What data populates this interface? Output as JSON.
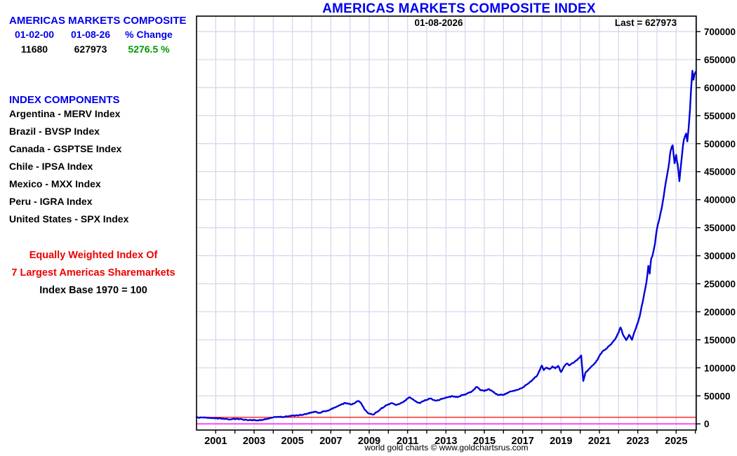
{
  "chart": {
    "title": "AMERICAS MARKETS COMPOSITE INDEX",
    "date_label": "01-08-2026",
    "last_label": "Last = 627973",
    "caption": "world gold charts © www.goldchartsrus.com"
  },
  "panel": {
    "title": "AMERICAS MARKETS COMPOSITE",
    "start_date": "01-02-00",
    "end_date": "01-08-26",
    "change_label": "% Change",
    "start_value": "11680",
    "end_value": "627973",
    "change_value": "5276.5 %",
    "components_heading": "INDEX COMPONENTS",
    "components": [
      "Argentina - MERV Index",
      "Brazil - BVSP Index",
      "Canada - GSPTSE Index",
      "Chile - IPSA Index",
      "Mexico - MXX Index",
      "Peru - IGRA Index",
      "United States - SPX Index"
    ],
    "note_line1": "Equally Weighted Index Of",
    "note_line2": "7 Largest Americas Sharemarkets",
    "note_line3": "Index Base 1970 = 100"
  },
  "chart_data": {
    "type": "line",
    "title": "AMERICAS MARKETS COMPOSITE INDEX",
    "xlabel": "",
    "ylabel": "",
    "xlim": [
      2000,
      2026.05
    ],
    "ylim": [
      -11000,
      727500
    ],
    "grid": true,
    "legend_position": "none",
    "y_ticks": [
      0,
      50000,
      100000,
      150000,
      200000,
      250000,
      300000,
      350000,
      400000,
      450000,
      500000,
      550000,
      600000,
      650000,
      700000
    ],
    "x_ticks": [
      2001,
      2002,
      2003,
      2004,
      2005,
      2006,
      2007,
      2008,
      2009,
      2010,
      2011,
      2012,
      2013,
      2014,
      2015,
      2016,
      2017,
      2018,
      2019,
      2020,
      2021,
      2022,
      2023,
      2024,
      2025,
      2026
    ],
    "x_labels": [
      2001,
      2003,
      2005,
      2007,
      2009,
      2011,
      2013,
      2015,
      2017,
      2019,
      2021,
      2023,
      2025
    ],
    "annotations": {
      "date_label": "01-08-2026",
      "last_label": "Last = 627973",
      "first_value": 11680,
      "last_value": 627973
    },
    "ref_lines": [
      {
        "name": "start-value-reference-line",
        "value": 11680,
        "color": "#ff0000"
      },
      {
        "name": "zero-reference-line",
        "value": 0,
        "color": "#ff00ff"
      }
    ],
    "colors": {
      "grid": "#d4d4ee",
      "axis": "#000000",
      "line": "#0000dd"
    },
    "series": [
      {
        "name": "Americas Markets Composite Index",
        "color": "#0000dd",
        "points": [
          [
            2000.0,
            11680
          ],
          [
            2000.25,
            11300
          ],
          [
            2000.5,
            11000
          ],
          [
            2000.75,
            10600
          ],
          [
            2001.0,
            10100
          ],
          [
            2001.3,
            9300
          ],
          [
            2001.55,
            8900
          ],
          [
            2001.72,
            7900
          ],
          [
            2001.9,
            8800
          ],
          [
            2002.1,
            8900
          ],
          [
            2002.35,
            8100
          ],
          [
            2002.6,
            7200
          ],
          [
            2002.8,
            6600
          ],
          [
            2003.0,
            6900
          ],
          [
            2003.25,
            6500
          ],
          [
            2003.5,
            7600
          ],
          [
            2003.75,
            9500
          ],
          [
            2004.0,
            11500
          ],
          [
            2004.25,
            12800
          ],
          [
            2004.5,
            12200
          ],
          [
            2004.75,
            13500
          ],
          [
            2005.0,
            14800
          ],
          [
            2005.25,
            15200
          ],
          [
            2005.5,
            16000
          ],
          [
            2005.75,
            18000
          ],
          [
            2006.0,
            20500
          ],
          [
            2006.2,
            21500
          ],
          [
            2006.4,
            19800
          ],
          [
            2006.6,
            21800
          ],
          [
            2006.8,
            23500
          ],
          [
            2007.0,
            26000
          ],
          [
            2007.25,
            29500
          ],
          [
            2007.5,
            33500
          ],
          [
            2007.75,
            37500
          ],
          [
            2007.9,
            36000
          ],
          [
            2008.1,
            34500
          ],
          [
            2008.3,
            38500
          ],
          [
            2008.45,
            41000
          ],
          [
            2008.6,
            35500
          ],
          [
            2008.75,
            26000
          ],
          [
            2008.9,
            20500
          ],
          [
            2009.05,
            17800
          ],
          [
            2009.2,
            16500
          ],
          [
            2009.4,
            21000
          ],
          [
            2009.6,
            26500
          ],
          [
            2009.8,
            31000
          ],
          [
            2010.0,
            35000
          ],
          [
            2010.2,
            37000
          ],
          [
            2010.4,
            33500
          ],
          [
            2010.6,
            36000
          ],
          [
            2010.8,
            39500
          ],
          [
            2011.0,
            45000
          ],
          [
            2011.1,
            47500
          ],
          [
            2011.3,
            43500
          ],
          [
            2011.5,
            38500
          ],
          [
            2011.65,
            37000
          ],
          [
            2011.8,
            40500
          ],
          [
            2012.0,
            43000
          ],
          [
            2012.2,
            45500
          ],
          [
            2012.45,
            41500
          ],
          [
            2012.7,
            43500
          ],
          [
            2012.9,
            45500
          ],
          [
            2013.1,
            47500
          ],
          [
            2013.35,
            49500
          ],
          [
            2013.6,
            47500
          ],
          [
            2013.85,
            51500
          ],
          [
            2014.1,
            54000
          ],
          [
            2014.35,
            58000
          ],
          [
            2014.6,
            66000
          ],
          [
            2014.8,
            60000
          ],
          [
            2015.0,
            58500
          ],
          [
            2015.2,
            62000
          ],
          [
            2015.4,
            59000
          ],
          [
            2015.6,
            53500
          ],
          [
            2015.8,
            51500
          ],
          [
            2016.05,
            52500
          ],
          [
            2016.3,
            57000
          ],
          [
            2016.55,
            59500
          ],
          [
            2016.8,
            61500
          ],
          [
            2017.0,
            65000
          ],
          [
            2017.25,
            71000
          ],
          [
            2017.5,
            78000
          ],
          [
            2017.75,
            86000
          ],
          [
            2018.0,
            104000
          ],
          [
            2018.1,
            96000
          ],
          [
            2018.25,
            100500
          ],
          [
            2018.4,
            97500
          ],
          [
            2018.55,
            102500
          ],
          [
            2018.7,
            99000
          ],
          [
            2018.85,
            103500
          ],
          [
            2019.0,
            92500
          ],
          [
            2019.15,
            102000
          ],
          [
            2019.3,
            107500
          ],
          [
            2019.45,
            104500
          ],
          [
            2019.6,
            108500
          ],
          [
            2019.75,
            112000
          ],
          [
            2019.9,
            116500
          ],
          [
            2020.05,
            122000
          ],
          [
            2020.16,
            76500
          ],
          [
            2020.28,
            92000
          ],
          [
            2020.45,
            97500
          ],
          [
            2020.6,
            103000
          ],
          [
            2020.75,
            108000
          ],
          [
            2020.9,
            114000
          ],
          [
            2021.05,
            124000
          ],
          [
            2021.2,
            130500
          ],
          [
            2021.35,
            134000
          ],
          [
            2021.5,
            139000
          ],
          [
            2021.65,
            144000
          ],
          [
            2021.8,
            150000
          ],
          [
            2021.95,
            160000
          ],
          [
            2022.1,
            172000
          ],
          [
            2022.25,
            158000
          ],
          [
            2022.4,
            149500
          ],
          [
            2022.55,
            159000
          ],
          [
            2022.7,
            150000
          ],
          [
            2022.85,
            166000
          ],
          [
            2023.0,
            180000
          ],
          [
            2023.15,
            200000
          ],
          [
            2023.3,
            225000
          ],
          [
            2023.45,
            252000
          ],
          [
            2023.55,
            282000
          ],
          [
            2023.62,
            268000
          ],
          [
            2023.7,
            295000
          ],
          [
            2023.8,
            305000
          ],
          [
            2023.9,
            322000
          ],
          [
            2024.0,
            348000
          ],
          [
            2024.1,
            362000
          ],
          [
            2024.2,
            378000
          ],
          [
            2024.3,
            396000
          ],
          [
            2024.4,
            418000
          ],
          [
            2024.5,
            438000
          ],
          [
            2024.6,
            458000
          ],
          [
            2024.72,
            488000
          ],
          [
            2024.82,
            497000
          ],
          [
            2024.92,
            465000
          ],
          [
            2025.0,
            480000
          ],
          [
            2025.08,
            463000
          ],
          [
            2025.17,
            433000
          ],
          [
            2025.27,
            468000
          ],
          [
            2025.35,
            495000
          ],
          [
            2025.45,
            512000
          ],
          [
            2025.52,
            518000
          ],
          [
            2025.58,
            504000
          ],
          [
            2025.65,
            528000
          ],
          [
            2025.72,
            560000
          ],
          [
            2025.78,
            598000
          ],
          [
            2025.85,
            630000
          ],
          [
            2025.9,
            614000
          ],
          [
            2025.96,
            624000
          ],
          [
            2026.02,
            627973
          ]
        ]
      }
    ]
  }
}
